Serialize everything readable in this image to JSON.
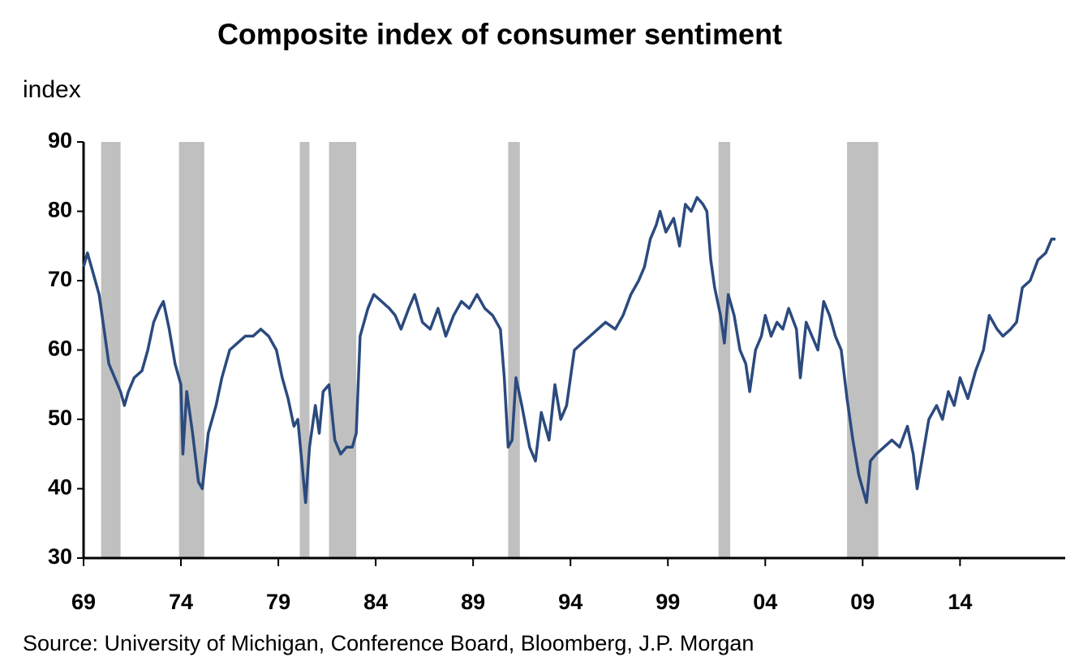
{
  "chart_data": {
    "type": "line",
    "title": "Composite index of consumer sentiment",
    "y_label": "index",
    "source": "Source: University of Michigan, Conference Board, Bloomberg, J.P. Morgan",
    "xlim": [
      1969,
      2019.4
    ],
    "ylim": [
      30,
      90
    ],
    "yticks": [
      30,
      40,
      50,
      60,
      70,
      80,
      90
    ],
    "xticks": [
      {
        "value": 1969,
        "label": "69"
      },
      {
        "value": 1974,
        "label": "74"
      },
      {
        "value": 1979,
        "label": "79"
      },
      {
        "value": 1984,
        "label": "84"
      },
      {
        "value": 1989,
        "label": "89"
      },
      {
        "value": 1994,
        "label": "94"
      },
      {
        "value": 1999,
        "label": "99"
      },
      {
        "value": 2004,
        "label": "04"
      },
      {
        "value": 2009,
        "label": "09"
      },
      {
        "value": 2014,
        "label": "14"
      }
    ],
    "recessions": [
      [
        1969.9,
        1970.9
      ],
      [
        1973.9,
        1975.2
      ],
      [
        1980.1,
        1980.6
      ],
      [
        1981.6,
        1983.0
      ],
      [
        1990.8,
        1991.4
      ],
      [
        2001.6,
        2002.2
      ],
      [
        2008.2,
        2009.8
      ]
    ],
    "recession_color": "#c0c0c0",
    "series": [
      {
        "color": "#2b4a7e",
        "x": [
          1969.0,
          1969.2,
          1969.5,
          1969.8,
          1970.0,
          1970.3,
          1970.6,
          1970.9,
          1971.1,
          1971.3,
          1971.6,
          1972.0,
          1972.3,
          1972.6,
          1972.9,
          1973.1,
          1973.4,
          1973.7,
          1974.0,
          1974.1,
          1974.3,
          1974.6,
          1974.9,
          1975.1,
          1975.4,
          1975.8,
          1976.1,
          1976.5,
          1976.9,
          1977.3,
          1977.7,
          1978.1,
          1978.5,
          1978.9,
          1979.2,
          1979.5,
          1979.8,
          1980.0,
          1980.2,
          1980.4,
          1980.6,
          1980.9,
          1981.1,
          1981.3,
          1981.6,
          1981.9,
          1982.2,
          1982.5,
          1982.8,
          1983.0,
          1983.2,
          1983.6,
          1983.9,
          1984.3,
          1984.7,
          1985.0,
          1985.3,
          1985.7,
          1986.0,
          1986.4,
          1986.8,
          1987.2,
          1987.6,
          1988.0,
          1988.4,
          1988.8,
          1989.2,
          1989.6,
          1990.0,
          1990.4,
          1990.6,
          1990.8,
          1991.0,
          1991.2,
          1991.5,
          1991.9,
          1992.2,
          1992.5,
          1992.9,
          1993.2,
          1993.5,
          1993.8,
          1994.2,
          1994.6,
          1995.0,
          1995.4,
          1995.8,
          1996.3,
          1996.7,
          1997.1,
          1997.5,
          1997.8,
          1998.1,
          1998.4,
          1998.6,
          1998.9,
          1999.3,
          1999.6,
          1999.9,
          2000.2,
          2000.5,
          2000.8,
          2001.0,
          2001.2,
          2001.4,
          2001.7,
          2001.9,
          2002.1,
          2002.4,
          2002.7,
          2003.0,
          2003.2,
          2003.5,
          2003.8,
          2004.0,
          2004.3,
          2004.6,
          2004.9,
          2005.2,
          2005.6,
          2005.8,
          2006.1,
          2006.4,
          2006.7,
          2007.0,
          2007.3,
          2007.6,
          2007.9,
          2008.2,
          2008.5,
          2008.8,
          2009.0,
          2009.2,
          2009.4,
          2009.7,
          2010.1,
          2010.5,
          2010.9,
          2011.3,
          2011.6,
          2011.8,
          2012.1,
          2012.4,
          2012.8,
          2013.1,
          2013.4,
          2013.7,
          2014.0,
          2014.4,
          2014.8,
          2015.2,
          2015.5,
          2015.9,
          2016.2,
          2016.6,
          2016.9,
          2017.2,
          2017.6,
          2018.0,
          2018.4,
          2018.7,
          2018.9
        ],
        "values": [
          72,
          74,
          71,
          68,
          64,
          58,
          56,
          54,
          52,
          54,
          56,
          57,
          60,
          64,
          66,
          67,
          63,
          58,
          55,
          45,
          54,
          48,
          41,
          40,
          48,
          52,
          56,
          60,
          61,
          62,
          62,
          63,
          62,
          60,
          56,
          53,
          49,
          50,
          44,
          38,
          46,
          52,
          48,
          54,
          55,
          47,
          45,
          46,
          46,
          48,
          62,
          66,
          68,
          67,
          66,
          65,
          63,
          66,
          68,
          64,
          63,
          66,
          62,
          65,
          67,
          66,
          68,
          66,
          65,
          63,
          56,
          46,
          47,
          56,
          52,
          46,
          44,
          51,
          47,
          55,
          50,
          52,
          60,
          61,
          62,
          63,
          64,
          63,
          65,
          68,
          70,
          72,
          76,
          78,
          80,
          77,
          79,
          75,
          81,
          80,
          82,
          81,
          80,
          73,
          69,
          65,
          61,
          68,
          65,
          60,
          58,
          54,
          60,
          62,
          65,
          62,
          64,
          63,
          66,
          63,
          56,
          64,
          62,
          60,
          67,
          65,
          62,
          60,
          53,
          47,
          42,
          40,
          38,
          44,
          45,
          46,
          47,
          46,
          49,
          45,
          40,
          45,
          50,
          52,
          50,
          54,
          52,
          56,
          53,
          57,
          60,
          65,
          63,
          62,
          63,
          64,
          69,
          70,
          73,
          74,
          76,
          76
        ]
      }
    ]
  }
}
